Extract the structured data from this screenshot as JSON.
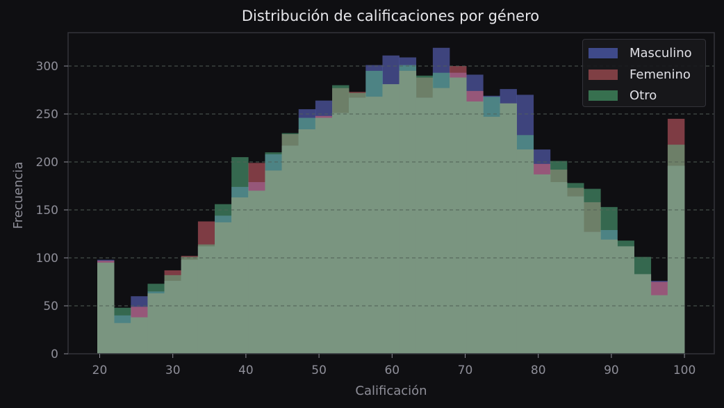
{
  "chart_data": {
    "type": "bar",
    "subtype": "overlapping_histogram",
    "title": "Distribución de calificaciones por género",
    "xlabel": "Calificación",
    "ylabel": "Frecuencia",
    "xlim": [
      15.5,
      104
    ],
    "ylim": [
      0,
      335
    ],
    "xticks": [
      20,
      30,
      40,
      50,
      60,
      70,
      80,
      90,
      100
    ],
    "yticks": [
      0,
      50,
      100,
      150,
      200,
      250,
      300
    ],
    "grid": {
      "y": true,
      "style": "dashed"
    },
    "legend_position": "upper right",
    "bin_start": 19.67,
    "bin_width": 2.295,
    "bin_count": 35,
    "series": [
      {
        "name": "Masculino",
        "color": "#3f4a8a",
        "values": [
          98,
          40,
          60,
          65,
          76,
          98,
          112,
          144,
          174,
          179,
          208,
          217,
          255,
          264,
          251,
          267,
          301,
          311,
          309,
          267,
          319,
          293,
          291,
          269,
          276,
          270,
          213,
          179,
          164,
          127,
          129,
          112,
          83,
          76,
          196
        ]
      },
      {
        "name": "Femenino",
        "color": "#8a3f44",
        "values": [
          97,
          32,
          49,
          63,
          87,
          102,
          138,
          137,
          163,
          199,
          191,
          229,
          234,
          248,
          277,
          273,
          268,
          281,
          295,
          288,
          277,
          300,
          274,
          247,
          261,
          213,
          198,
          192,
          173,
          158,
          119,
          112,
          83,
          75,
          245
        ]
      },
      {
        "name": "Otro",
        "color": "#37704f",
        "values": [
          95,
          48,
          38,
          73,
          82,
          101,
          114,
          156,
          205,
          170,
          210,
          230,
          246,
          246,
          280,
          272,
          295,
          281,
          301,
          290,
          293,
          288,
          263,
          268,
          261,
          228,
          187,
          201,
          178,
          172,
          153,
          118,
          101,
          61,
          218
        ]
      }
    ]
  }
}
